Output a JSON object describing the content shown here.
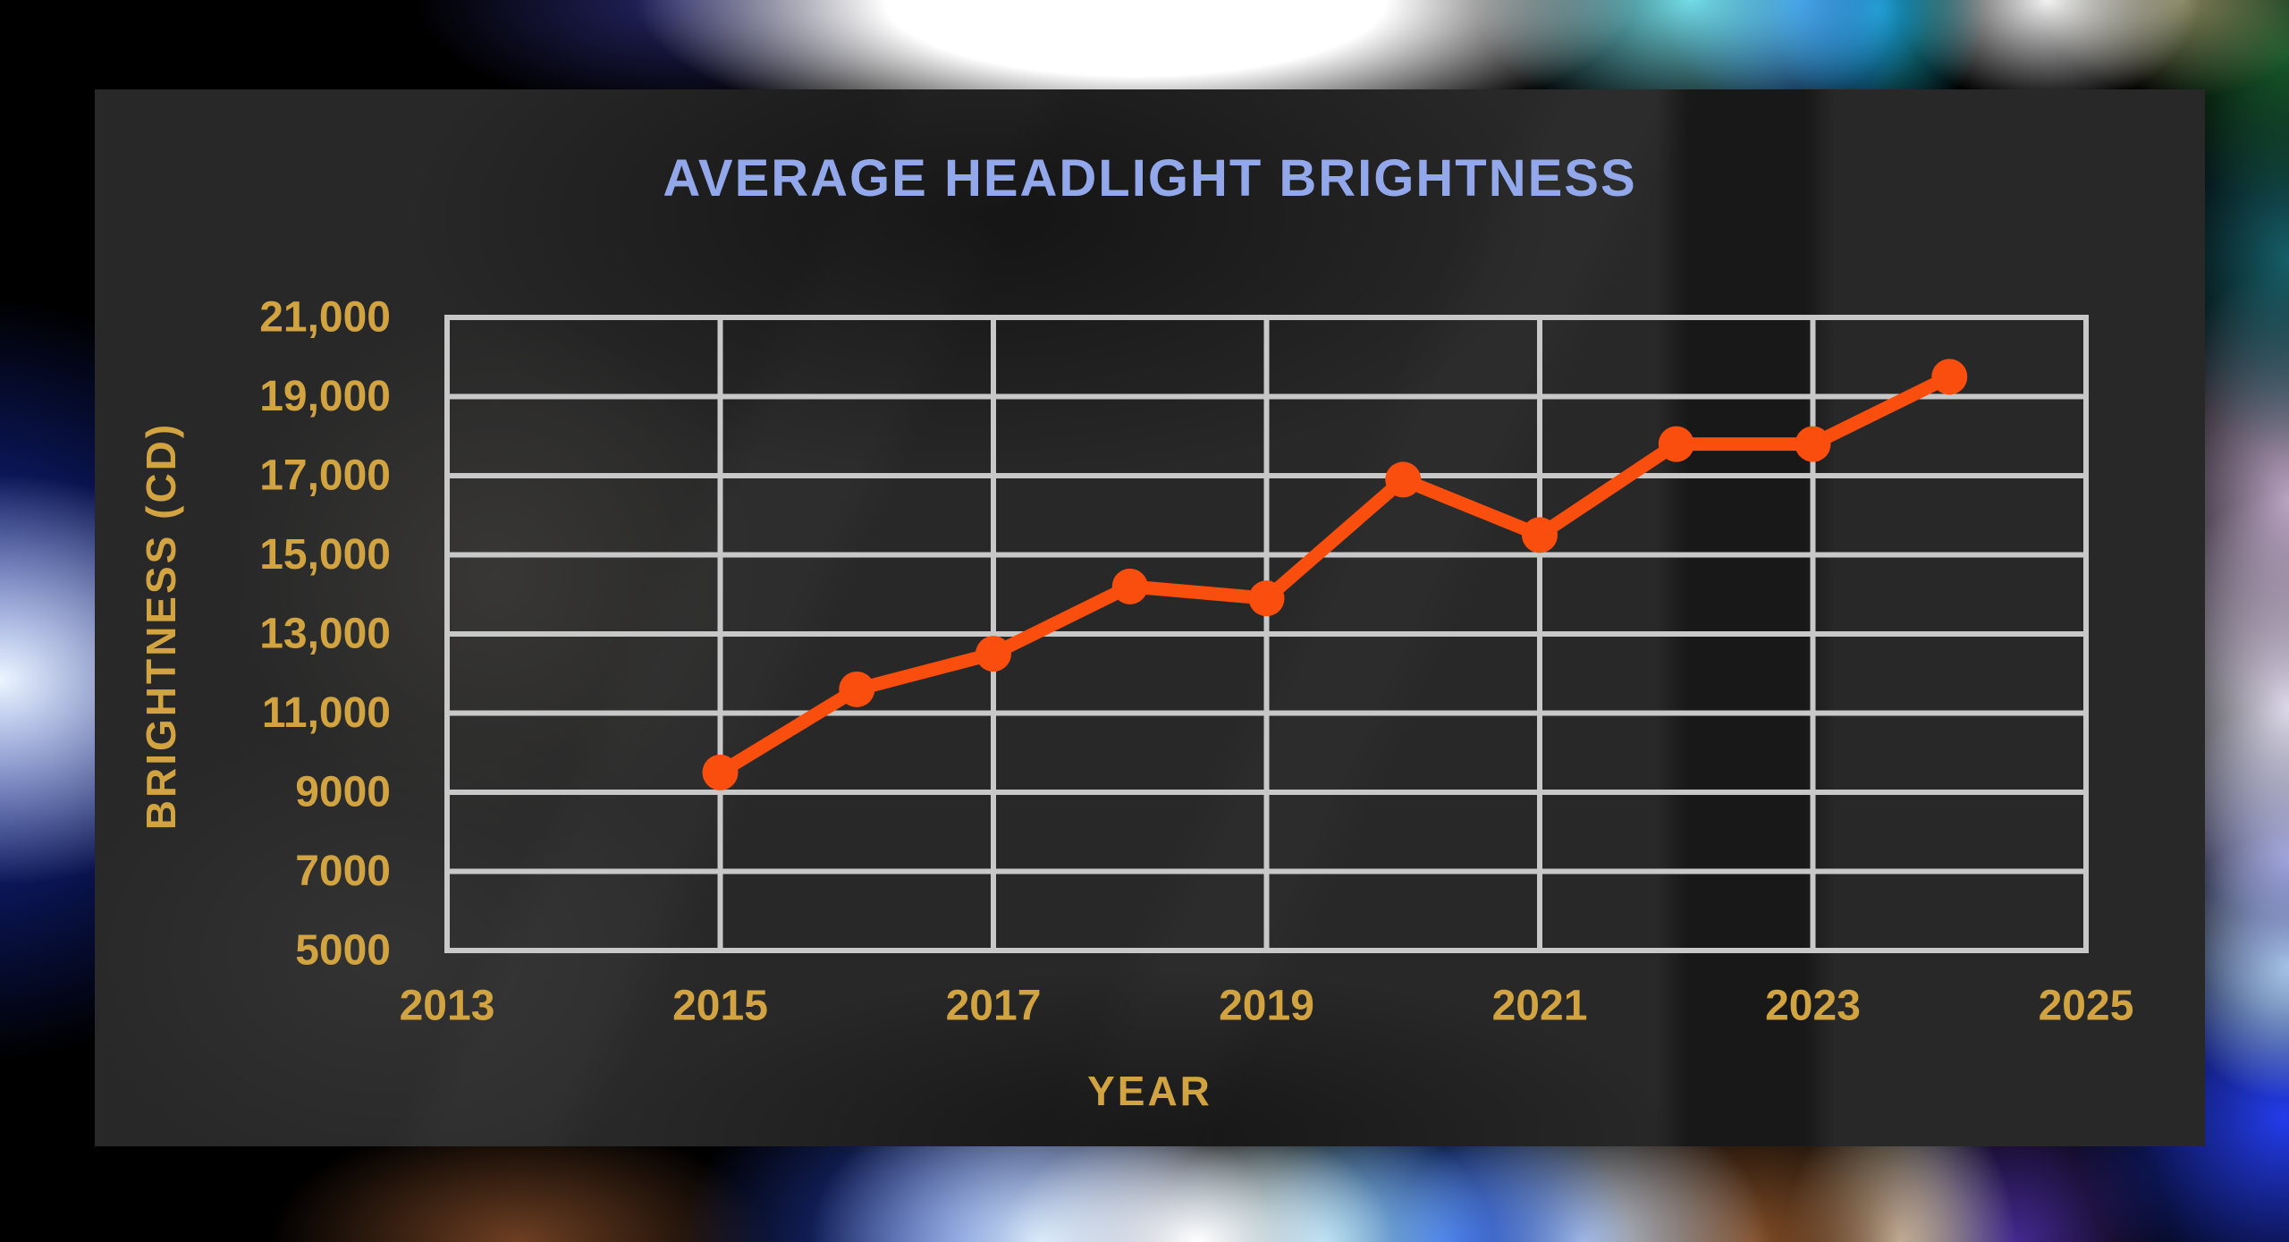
{
  "title": "AVERAGE HEADLIGHT BRIGHTNESS",
  "axes": {
    "x_label": "YEAR",
    "y_label": "BRIGHTNESS (CD)"
  },
  "chart_data": {
    "type": "line",
    "title": "AVERAGE HEADLIGHT BRIGHTNESS",
    "xlabel": "YEAR",
    "ylabel": "BRIGHTNESS (CD)",
    "x": [
      2015,
      2016,
      2017,
      2018,
      2019,
      2020,
      2021,
      2022,
      2023,
      2024
    ],
    "values": [
      9500,
      11600,
      12500,
      14200,
      13900,
      16900,
      15500,
      17800,
      17800,
      19500
    ],
    "xlim": [
      2013,
      2025
    ],
    "ylim": [
      5000,
      21000
    ],
    "x_ticks": [
      2013,
      2015,
      2017,
      2019,
      2021,
      2023,
      2025
    ],
    "x_tick_labels": [
      "2013",
      "2015",
      "2017",
      "2019",
      "2021",
      "2023",
      "2025"
    ],
    "y_ticks": [
      5000,
      7000,
      9000,
      11000,
      13000,
      15000,
      17000,
      19000,
      21000
    ],
    "y_tick_labels": [
      "5000",
      "7000",
      "9000",
      "11,000",
      "13,000",
      "15,000",
      "17,000",
      "19,000",
      "21,000"
    ],
    "grid": true,
    "legend": false
  },
  "colors": {
    "line": "#f94e0d",
    "point": "#f94e0d",
    "grid": "#c8c8c8",
    "tick_label": "#d2a441",
    "axis_title": "#d2a441",
    "chart_title": "#92a8ea",
    "panel_bg": "#282828",
    "outer_bg": "#000000"
  }
}
